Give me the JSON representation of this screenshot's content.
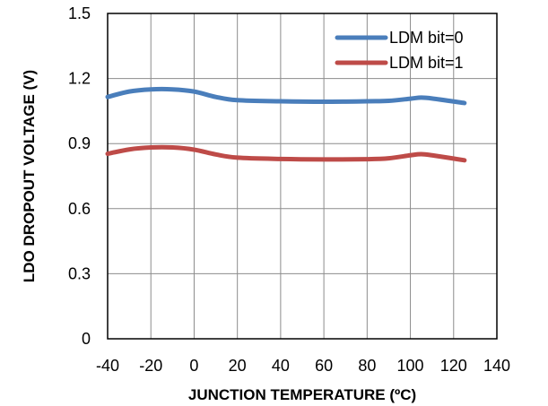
{
  "chart_data": {
    "type": "line",
    "xlabel": "JUNCTION TEMPERATURE (ºC)",
    "ylabel": "LDO DROPOUT VOLTAGE  (V)",
    "xlim": [
      -40,
      140
    ],
    "ylim": [
      0,
      1.5
    ],
    "x_ticks": [
      "-40",
      "-20",
      "0",
      "20",
      "40",
      "60",
      "80",
      "100",
      "120",
      "140"
    ],
    "y_ticks": [
      "0",
      "0.3",
      "0.6",
      "0.9",
      "1.2",
      "1.5"
    ],
    "x_tick_values": [
      -40,
      -20,
      0,
      20,
      40,
      60,
      80,
      100,
      120,
      140
    ],
    "y_tick_values": [
      0,
      0.3,
      0.6,
      0.9,
      1.2,
      1.5
    ],
    "grid": true,
    "legend_position": "top-right",
    "series": [
      {
        "name": "LDM bit=0",
        "color": "#4a7ebb",
        "x": [
          -40,
          -30,
          -20,
          -10,
          0,
          10,
          20,
          40,
          60,
          80,
          90,
          100,
          105,
          110,
          125
        ],
        "y": [
          1.115,
          1.14,
          1.15,
          1.15,
          1.14,
          1.115,
          1.1,
          1.095,
          1.093,
          1.095,
          1.097,
          1.107,
          1.112,
          1.108,
          1.087
        ]
      },
      {
        "name": "LDM bit=1",
        "color": "#be4b48",
        "x": [
          -40,
          -30,
          -20,
          -10,
          0,
          10,
          20,
          40,
          60,
          80,
          90,
          100,
          105,
          110,
          125
        ],
        "y": [
          0.853,
          0.873,
          0.882,
          0.882,
          0.872,
          0.85,
          0.835,
          0.829,
          0.827,
          0.828,
          0.832,
          0.846,
          0.851,
          0.846,
          0.823
        ]
      }
    ]
  }
}
